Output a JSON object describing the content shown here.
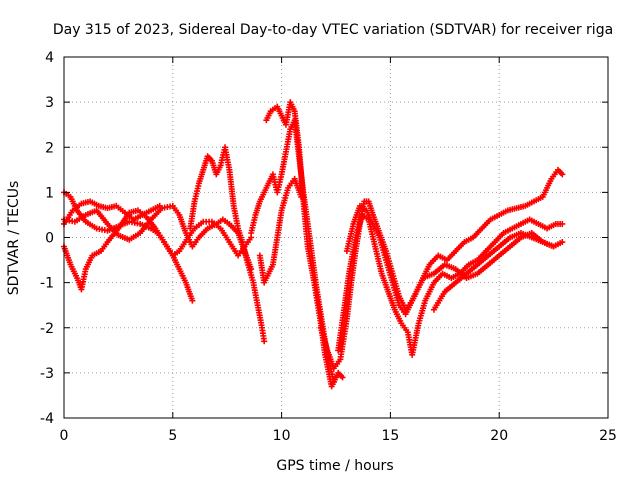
{
  "chart_data": {
    "type": "scatter",
    "title": "Day 315 of 2023, Sidereal Day-to-day VTEC variation (SDTVAR) for receiver riga",
    "xlabel": "GPS time / hours",
    "ylabel": "SDTVAR / TECUs",
    "xlim": [
      0,
      25
    ],
    "ylim": [
      -4,
      4
    ],
    "xticks": [
      "0",
      "5",
      "10",
      "15",
      "20",
      "25"
    ],
    "yticks": [
      "-4",
      "-3",
      "-2",
      "-1",
      "0",
      "1",
      "2",
      "3",
      "4"
    ],
    "grid": true,
    "marker": "+",
    "color": "#ff0000",
    "series": [
      {
        "name": "trace-1",
        "points": [
          [
            0.0,
            1.0
          ],
          [
            0.3,
            0.9
          ],
          [
            0.6,
            0.6
          ],
          [
            1.0,
            0.35
          ],
          [
            1.5,
            0.2
          ],
          [
            2.0,
            0.15
          ],
          [
            2.5,
            0.25
          ],
          [
            3.0,
            0.35
          ],
          [
            3.5,
            0.3
          ],
          [
            4.0,
            0.2
          ],
          [
            4.3,
            0.1
          ],
          [
            4.6,
            -0.1
          ],
          [
            5.0,
            -0.4
          ],
          [
            5.3,
            -0.7
          ],
          [
            5.6,
            -1.0
          ],
          [
            5.9,
            -1.4
          ]
        ]
      },
      {
        "name": "trace-2",
        "points": [
          [
            0.0,
            0.4
          ],
          [
            0.5,
            0.35
          ],
          [
            1.0,
            0.5
          ],
          [
            1.5,
            0.6
          ],
          [
            2.0,
            0.3
          ],
          [
            2.5,
            0.05
          ],
          [
            3.0,
            -0.05
          ],
          [
            3.5,
            0.1
          ],
          [
            4.0,
            0.4
          ],
          [
            4.5,
            0.65
          ],
          [
            5.0,
            0.7
          ],
          [
            5.3,
            0.5
          ],
          [
            5.6,
            0.1
          ],
          [
            5.9,
            -0.2
          ],
          [
            6.2,
            0.0
          ],
          [
            6.6,
            0.2
          ],
          [
            7.0,
            0.3
          ],
          [
            7.3,
            0.4
          ],
          [
            7.6,
            0.3
          ],
          [
            8.0,
            0.1
          ],
          [
            8.3,
            -0.3
          ],
          [
            8.6,
            -0.7
          ]
        ]
      },
      {
        "name": "trace-3",
        "points": [
          [
            0.0,
            -0.2
          ],
          [
            0.3,
            -0.6
          ],
          [
            0.6,
            -0.9
          ],
          [
            0.8,
            -1.15
          ],
          [
            1.0,
            -0.7
          ],
          [
            1.3,
            -0.4
          ],
          [
            1.7,
            -0.3
          ],
          [
            2.0,
            -0.1
          ],
          [
            2.5,
            0.2
          ],
          [
            3.0,
            0.55
          ],
          [
            3.4,
            0.6
          ],
          [
            3.8,
            0.45
          ],
          [
            4.2,
            0.2
          ],
          [
            4.6,
            -0.1
          ],
          [
            5.0,
            -0.4
          ],
          [
            5.3,
            -0.3
          ],
          [
            5.7,
            0.0
          ],
          [
            6.0,
            0.2
          ],
          [
            6.4,
            0.35
          ],
          [
            6.8,
            0.35
          ],
          [
            7.2,
            0.2
          ],
          [
            7.6,
            -0.1
          ],
          [
            8.0,
            -0.4
          ],
          [
            8.3,
            -0.2
          ],
          [
            8.6,
            0.0
          ]
        ]
      },
      {
        "name": "trace-4",
        "points": [
          [
            0.0,
            0.3
          ],
          [
            0.4,
            0.6
          ],
          [
            0.8,
            0.75
          ],
          [
            1.2,
            0.8
          ],
          [
            1.6,
            0.7
          ],
          [
            2.0,
            0.65
          ],
          [
            2.4,
            0.7
          ],
          [
            2.8,
            0.55
          ],
          [
            3.2,
            0.4
          ],
          [
            3.6,
            0.5
          ],
          [
            4.0,
            0.6
          ],
          [
            4.4,
            0.7
          ]
        ]
      },
      {
        "name": "trace-5",
        "points": [
          [
            5.8,
            0.2
          ],
          [
            6.0,
            0.8
          ],
          [
            6.2,
            1.2
          ],
          [
            6.4,
            1.5
          ],
          [
            6.6,
            1.8
          ],
          [
            6.8,
            1.7
          ],
          [
            7.0,
            1.4
          ],
          [
            7.2,
            1.6
          ],
          [
            7.4,
            2.0
          ],
          [
            7.6,
            1.5
          ],
          [
            7.8,
            0.7
          ],
          [
            8.0,
            0.2
          ],
          [
            8.2,
            -0.1
          ],
          [
            8.4,
            -0.5
          ],
          [
            8.7,
            -1.0
          ],
          [
            8.9,
            -1.5
          ],
          [
            9.1,
            -2.0
          ],
          [
            9.2,
            -2.3
          ]
        ]
      },
      {
        "name": "trace-6",
        "points": [
          [
            8.6,
            0.1
          ],
          [
            8.8,
            0.5
          ],
          [
            9.0,
            0.8
          ],
          [
            9.2,
            1.0
          ],
          [
            9.4,
            1.2
          ],
          [
            9.6,
            1.4
          ],
          [
            9.8,
            1.0
          ],
          [
            10.0,
            1.4
          ],
          [
            10.2,
            1.9
          ],
          [
            10.4,
            2.4
          ],
          [
            10.6,
            2.6
          ],
          [
            10.8,
            1.8
          ],
          [
            11.0,
            1.0
          ],
          [
            11.2,
            0.3
          ],
          [
            11.4,
            -0.4
          ],
          [
            11.6,
            -1.1
          ],
          [
            11.8,
            -1.7
          ],
          [
            12.0,
            -2.3
          ],
          [
            12.2,
            -2.8
          ],
          [
            12.4,
            -3.2
          ]
        ]
      },
      {
        "name": "trace-7",
        "points": [
          [
            9.3,
            2.6
          ],
          [
            9.5,
            2.8
          ],
          [
            9.8,
            2.9
          ],
          [
            10.0,
            2.7
          ],
          [
            10.2,
            2.5
          ],
          [
            10.4,
            3.0
          ],
          [
            10.6,
            2.8
          ],
          [
            10.8,
            2.0
          ],
          [
            11.0,
            0.8
          ],
          [
            11.2,
            -0.2
          ],
          [
            11.5,
            -1.0
          ],
          [
            11.8,
            -1.9
          ],
          [
            12.0,
            -2.6
          ],
          [
            12.3,
            -3.3
          ],
          [
            12.6,
            -3.0
          ],
          [
            12.8,
            -3.1
          ]
        ]
      },
      {
        "name": "trace-8",
        "points": [
          [
            9.0,
            -0.4
          ],
          [
            9.2,
            -1.0
          ],
          [
            9.4,
            -0.8
          ],
          [
            9.6,
            -0.6
          ],
          [
            9.8,
            0.0
          ],
          [
            10.0,
            0.6
          ],
          [
            10.3,
            1.1
          ],
          [
            10.6,
            1.3
          ],
          [
            10.9,
            0.9
          ]
        ]
      },
      {
        "name": "trace-9",
        "points": [
          [
            11.8,
            -2.0
          ],
          [
            12.1,
            -2.5
          ],
          [
            12.4,
            -2.9
          ],
          [
            12.7,
            -2.7
          ],
          [
            13.0,
            -1.8
          ],
          [
            13.2,
            -1.0
          ],
          [
            13.4,
            -0.3
          ],
          [
            13.6,
            0.3
          ],
          [
            13.8,
            0.8
          ],
          [
            14.0,
            0.8
          ],
          [
            14.2,
            0.5
          ],
          [
            14.5,
            0.1
          ],
          [
            14.8,
            -0.3
          ],
          [
            15.1,
            -0.8
          ],
          [
            15.4,
            -1.3
          ],
          [
            15.7,
            -1.6
          ],
          [
            16.0,
            -1.4
          ],
          [
            16.4,
            -1.0
          ],
          [
            16.8,
            -0.6
          ],
          [
            17.2,
            -0.4
          ],
          [
            17.6,
            -0.5
          ],
          [
            18.0,
            -0.3
          ],
          [
            18.4,
            -0.1
          ],
          [
            18.8,
            0.0
          ],
          [
            19.2,
            0.2
          ],
          [
            19.6,
            0.4
          ],
          [
            20.0,
            0.5
          ],
          [
            20.4,
            0.6
          ],
          [
            20.8,
            0.65
          ],
          [
            21.2,
            0.7
          ],
          [
            21.6,
            0.8
          ],
          [
            22.0,
            0.9
          ],
          [
            22.4,
            1.3
          ],
          [
            22.7,
            1.5
          ],
          [
            22.9,
            1.4
          ]
        ]
      },
      {
        "name": "trace-10",
        "points": [
          [
            12.6,
            -2.5
          ],
          [
            12.9,
            -1.5
          ],
          [
            13.1,
            -0.8
          ],
          [
            13.4,
            0.0
          ],
          [
            13.7,
            0.5
          ],
          [
            14.0,
            0.4
          ],
          [
            14.3,
            -0.2
          ],
          [
            14.6,
            -0.8
          ],
          [
            14.9,
            -1.2
          ],
          [
            15.2,
            -1.6
          ],
          [
            15.5,
            -1.9
          ],
          [
            15.8,
            -2.1
          ],
          [
            16.0,
            -2.6
          ],
          [
            16.3,
            -1.9
          ],
          [
            16.6,
            -1.4
          ],
          [
            17.0,
            -1.0
          ],
          [
            17.4,
            -0.8
          ],
          [
            17.8,
            -0.9
          ],
          [
            18.2,
            -0.8
          ],
          [
            18.6,
            -0.6
          ],
          [
            19.0,
            -0.5
          ],
          [
            19.4,
            -0.3
          ],
          [
            19.8,
            -0.1
          ],
          [
            20.2,
            0.1
          ],
          [
            20.6,
            0.2
          ],
          [
            21.0,
            0.3
          ],
          [
            21.4,
            0.4
          ],
          [
            21.8,
            0.3
          ],
          [
            22.2,
            0.2
          ],
          [
            22.6,
            0.3
          ],
          [
            22.9,
            0.3
          ]
        ]
      },
      {
        "name": "trace-11",
        "points": [
          [
            13.0,
            -0.3
          ],
          [
            13.3,
            0.3
          ],
          [
            13.6,
            0.7
          ],
          [
            13.9,
            0.6
          ],
          [
            14.2,
            0.3
          ],
          [
            14.5,
            0.0
          ],
          [
            14.8,
            -0.5
          ],
          [
            15.1,
            -1.0
          ],
          [
            15.4,
            -1.5
          ],
          [
            15.7,
            -1.7
          ],
          [
            16.1,
            -1.3
          ],
          [
            16.5,
            -0.9
          ],
          [
            17.0,
            -0.8
          ],
          [
            17.5,
            -0.6
          ],
          [
            18.0,
            -0.7
          ],
          [
            18.5,
            -0.9
          ],
          [
            19.0,
            -0.8
          ],
          [
            19.5,
            -0.6
          ],
          [
            20.0,
            -0.4
          ],
          [
            20.5,
            -0.2
          ],
          [
            21.0,
            0.0
          ],
          [
            21.5,
            0.1
          ],
          [
            22.0,
            -0.1
          ],
          [
            22.5,
            -0.2
          ],
          [
            22.9,
            -0.1
          ]
        ]
      },
      {
        "name": "trace-12",
        "points": [
          [
            17.0,
            -1.6
          ],
          [
            17.5,
            -1.2
          ],
          [
            18.0,
            -1.0
          ],
          [
            18.5,
            -0.8
          ],
          [
            19.0,
            -0.6
          ],
          [
            19.5,
            -0.4
          ],
          [
            20.0,
            -0.2
          ],
          [
            20.5,
            0.0
          ],
          [
            21.0,
            0.1
          ],
          [
            21.5,
            0.0
          ],
          [
            22.0,
            -0.1
          ],
          [
            22.5,
            -0.2
          ]
        ]
      }
    ]
  }
}
